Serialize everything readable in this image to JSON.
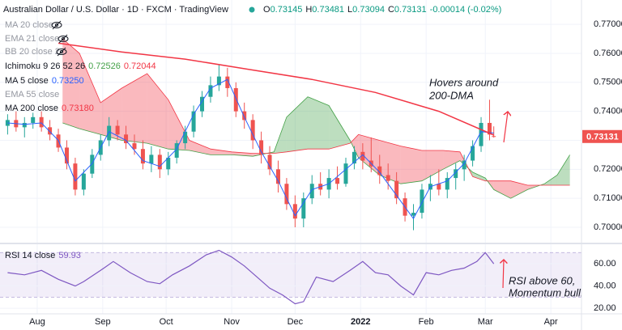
{
  "chart_data": {
    "type": "candlestick",
    "title": "Australian Dollar / U.S. Dollar · 1D · FXCM · TradingView",
    "ohlc_labels": [
      "O",
      "H",
      "L",
      "C"
    ],
    "change": "-0.00014 (-0.02%)",
    "up_color": "#26a69a",
    "down_color": "#ef5350",
    "x": [
      -14,
      -10,
      -6,
      -2,
      2,
      6,
      10,
      14,
      18,
      22,
      26,
      30,
      34,
      38,
      42,
      46,
      50,
      54,
      58,
      62,
      66,
      70,
      74,
      78,
      82,
      86,
      90,
      94,
      98,
      102,
      106,
      110,
      114,
      118,
      122,
      126,
      130,
      134,
      138,
      142,
      146,
      150,
      154,
      158,
      162,
      166,
      170,
      174,
      178,
      182,
      186,
      190,
      194,
      198,
      202,
      206,
      210,
      214,
      216
    ],
    "open": [
      0.735,
      0.737,
      0.7345,
      0.736,
      0.738,
      0.7345,
      0.732,
      0.7275,
      0.722,
      0.713,
      0.7185,
      0.725,
      0.73,
      0.735,
      0.732,
      0.729,
      0.727,
      0.722,
      0.725,
      0.72,
      0.724,
      0.729,
      0.733,
      0.74,
      0.745,
      0.749,
      0.752,
      0.748,
      0.74,
      0.737,
      0.73,
      0.725,
      0.72,
      0.715,
      0.708,
      0.703,
      0.71,
      0.715,
      0.713,
      0.717,
      0.715,
      0.722,
      0.726,
      0.723,
      0.721,
      0.718,
      0.716,
      0.71,
      0.704,
      0.705,
      0.713,
      0.715,
      0.713,
      0.717,
      0.72,
      0.723,
      0.728,
      0.736,
      0.73145
    ],
    "high": [
      0.739,
      0.74,
      0.738,
      0.7395,
      0.74,
      0.737,
      0.734,
      0.73,
      0.724,
      0.72,
      0.727,
      0.732,
      0.738,
      0.737,
      0.735,
      0.732,
      0.73,
      0.728,
      0.727,
      0.726,
      0.73,
      0.735,
      0.742,
      0.747,
      0.752,
      0.756,
      0.755,
      0.75,
      0.743,
      0.739,
      0.733,
      0.728,
      0.723,
      0.717,
      0.711,
      0.712,
      0.718,
      0.719,
      0.72,
      0.721,
      0.724,
      0.728,
      0.729,
      0.731,
      0.725,
      0.722,
      0.719,
      0.712,
      0.708,
      0.715,
      0.718,
      0.72,
      0.719,
      0.722,
      0.725,
      0.73,
      0.738,
      0.744,
      0.73481
    ],
    "low": [
      0.732,
      0.733,
      0.731,
      0.734,
      0.733,
      0.73,
      0.726,
      0.72,
      0.711,
      0.711,
      0.717,
      0.723,
      0.728,
      0.73,
      0.727,
      0.725,
      0.72,
      0.719,
      0.717,
      0.718,
      0.722,
      0.727,
      0.731,
      0.738,
      0.743,
      0.747,
      0.745,
      0.738,
      0.734,
      0.727,
      0.722,
      0.718,
      0.712,
      0.706,
      0.7,
      0.7,
      0.708,
      0.711,
      0.71,
      0.713,
      0.714,
      0.72,
      0.72,
      0.719,
      0.715,
      0.713,
      0.708,
      0.702,
      0.699,
      0.703,
      0.709,
      0.711,
      0.71,
      0.713,
      0.716,
      0.721,
      0.726,
      0.73,
      0.73094
    ],
    "close": [
      0.737,
      0.7345,
      0.736,
      0.738,
      0.7345,
      0.732,
      0.7275,
      0.722,
      0.713,
      0.7185,
      0.725,
      0.73,
      0.735,
      0.732,
      0.729,
      0.727,
      0.722,
      0.725,
      0.72,
      0.724,
      0.729,
      0.733,
      0.74,
      0.745,
      0.749,
      0.752,
      0.748,
      0.74,
      0.737,
      0.73,
      0.725,
      0.72,
      0.715,
      0.708,
      0.703,
      0.71,
      0.715,
      0.713,
      0.717,
      0.715,
      0.722,
      0.726,
      0.723,
      0.721,
      0.718,
      0.716,
      0.71,
      0.704,
      0.705,
      0.713,
      0.715,
      0.713,
      0.717,
      0.72,
      0.723,
      0.728,
      0.736,
      0.732,
      0.73131
    ],
    "xlim": [
      -17.6,
      257.5
    ],
    "xticks": [
      {
        "value": 0,
        "label": "Aug"
      },
      {
        "value": 31,
        "label": "Sep"
      },
      {
        "value": 61,
        "label": "Oct"
      },
      {
        "value": 92,
        "label": "Nov"
      },
      {
        "value": 122,
        "label": "Dec"
      },
      {
        "value": 153,
        "label": "2022"
      },
      {
        "value": 184,
        "label": "Feb"
      },
      {
        "value": 212,
        "label": "Mar"
      },
      {
        "value": 243,
        "label": "Apr"
      }
    ],
    "ylim": [
      0.6947,
      0.7784
    ],
    "yticks": [
      {
        "value": 0.7,
        "label": "0.70000"
      },
      {
        "value": 0.71,
        "label": "0.71000"
      },
      {
        "value": 0.72,
        "label": "0.72000"
      },
      {
        "value": 0.73,
        "label": "0.73000"
      },
      {
        "value": 0.74,
        "label": "0.74000"
      },
      {
        "value": 0.75,
        "label": "0.75000"
      },
      {
        "value": 0.76,
        "label": "0.76000"
      },
      {
        "value": 0.77,
        "label": "0.77000"
      }
    ],
    "grid": true,
    "hidden_indicators": [
      "MA 20 close",
      "EMA 21 close",
      "BB 20 close 2",
      "EMA 55 close"
    ],
    "ichimoku": {
      "name": "Ichimoku 9 26 52 26",
      "value_labels": [
        "0.72526",
        "0.72044"
      ],
      "up_color": "#43a047",
      "down_color": "#f23645",
      "x": [
        12,
        20,
        30,
        40,
        52,
        62,
        72,
        82,
        92,
        102,
        112,
        118,
        128,
        138,
        148,
        152,
        162,
        172,
        182,
        192,
        200,
        206,
        212,
        216,
        224,
        232,
        240,
        246,
        252
      ],
      "span_a": [
        0.736,
        0.734,
        0.732,
        0.73,
        0.729,
        0.727,
        0.7265,
        0.725,
        0.725,
        0.7245,
        0.726,
        0.738,
        0.745,
        0.742,
        0.73,
        0.724,
        0.718,
        0.715,
        0.716,
        0.72,
        0.723,
        0.719,
        0.717,
        0.713,
        0.71,
        0.713,
        0.715,
        0.718,
        0.725
      ],
      "span_b": [
        0.765,
        0.76,
        0.743,
        0.748,
        0.753,
        0.744,
        0.73,
        0.727,
        0.726,
        0.7255,
        0.7255,
        0.726,
        0.727,
        0.727,
        0.729,
        0.732,
        0.73,
        0.728,
        0.7265,
        0.7265,
        0.726,
        0.7175,
        0.716,
        0.716,
        0.716,
        0.7145,
        0.7145,
        0.7145,
        0.7145
      ]
    },
    "overlays": [
      {
        "name": "MA 5 close",
        "value_label": "0.73250",
        "color": "#2962ff",
        "x": [
          -14,
          -6,
          2,
          10,
          18,
          26,
          34,
          42,
          50,
          58,
          66,
          74,
          82,
          90,
          98,
          106,
          114,
          122,
          130,
          138,
          146,
          154,
          162,
          170,
          178,
          186,
          194,
          202,
          210,
          216
        ],
        "values": [
          0.736,
          0.7355,
          0.736,
          0.73,
          0.716,
          0.722,
          0.733,
          0.73,
          0.723,
          0.721,
          0.727,
          0.739,
          0.748,
          0.751,
          0.738,
          0.726,
          0.716,
          0.704,
          0.713,
          0.715,
          0.72,
          0.725,
          0.719,
          0.711,
          0.703,
          0.714,
          0.716,
          0.722,
          0.733,
          0.7325
        ]
      },
      {
        "name": "MA 200 close",
        "value_label": "0.73180",
        "color": "#f23645",
        "x": [
          10,
          40,
          70,
          100,
          130,
          160,
          190,
          216
        ],
        "values": [
          0.7635,
          0.7605,
          0.758,
          0.7545,
          0.751,
          0.7465,
          0.74,
          0.7318
        ]
      }
    ],
    "rsi": {
      "name": "RSI 14 close",
      "color": "#7e57c2",
      "band_color": "rgba(126,87,194,0.1)",
      "x": [
        -14,
        -6,
        2,
        10,
        18,
        22,
        30,
        36,
        44,
        52,
        58,
        64,
        72,
        80,
        86,
        92,
        98,
        104,
        110,
        116,
        122,
        126,
        132,
        140,
        148,
        154,
        160,
        166,
        172,
        178,
        184,
        190,
        196,
        202,
        208,
        212,
        216
      ],
      "values": [
        52,
        50,
        54,
        46,
        40,
        44,
        54,
        62,
        52,
        44,
        42,
        50,
        58,
        68,
        72,
        66,
        58,
        48,
        38,
        32,
        24,
        26,
        48,
        44,
        54,
        62,
        52,
        50,
        40,
        32,
        52,
        50,
        54,
        56,
        62,
        70,
        59.93
      ],
      "ylim": [
        15,
        73.1
      ],
      "yticks": [
        {
          "value": 20,
          "label": "20.00"
        },
        {
          "value": 40,
          "label": "40.00"
        },
        {
          "value": 60,
          "label": "60.00"
        }
      ],
      "band": [
        30,
        70
      ]
    },
    "annotations": [
      "Hovers around",
      "200-DMA",
      "RSI above 60,",
      "Momentum bulli"
    ]
  }
}
